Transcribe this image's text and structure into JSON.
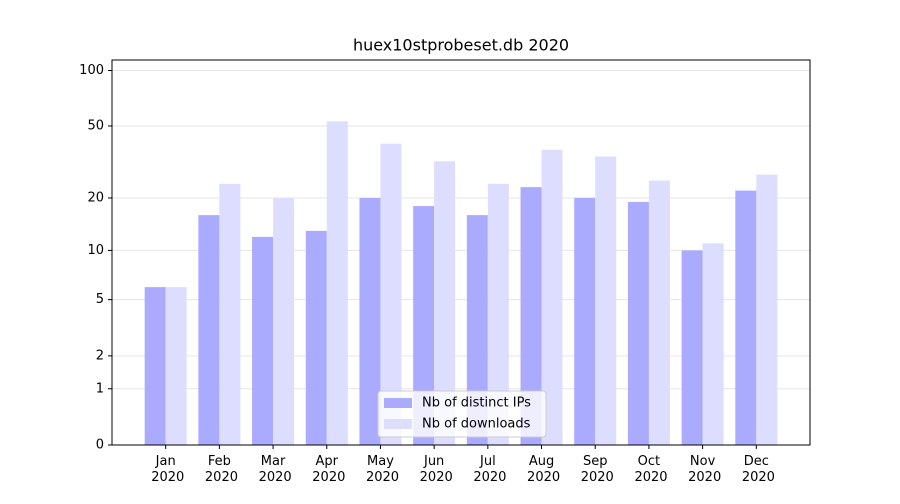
{
  "chart_data": {
    "type": "bar",
    "title": "huex10stprobeset.db 2020",
    "categories": [
      "Jan 2020",
      "Feb 2020",
      "Mar 2020",
      "Apr 2020",
      "May 2020",
      "Jun 2020",
      "Jul 2020",
      "Aug 2020",
      "Sep 2020",
      "Oct 2020",
      "Nov 2020",
      "Dec 2020"
    ],
    "series": [
      {
        "name": "Nb of distinct IPs",
        "color": "#aaaaff",
        "values": [
          6,
          16,
          12,
          13,
          20,
          18,
          16,
          23,
          20,
          19,
          10,
          22
        ]
      },
      {
        "name": "Nb of downloads",
        "color": "#ddddff",
        "values": [
          6,
          24,
          20,
          53,
          40,
          32,
          24,
          37,
          34,
          25,
          11,
          27
        ]
      }
    ],
    "yscale": "log1p",
    "ylim": [
      0,
      114
    ],
    "yticks": [
      0,
      1,
      2,
      5,
      10,
      20,
      50,
      100
    ],
    "grid": true,
    "legend": "lower center"
  }
}
